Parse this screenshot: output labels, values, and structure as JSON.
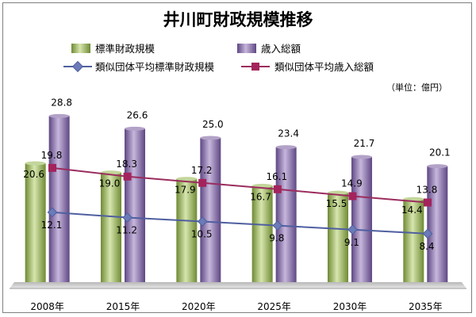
{
  "chart_data": {
    "type": "bar",
    "title": "井川町財政規模推移",
    "unit_label": "（単位：億円）",
    "categories": [
      "2008年",
      "2015年",
      "2020年",
      "2025年",
      "2030年",
      "2035年"
    ],
    "series": [
      {
        "name": "標準財政規模",
        "kind": "bar",
        "color": "#9bbb59",
        "values": [
          20.6,
          19.0,
          17.9,
          16.7,
          15.5,
          14.4
        ],
        "labels": [
          "20.6",
          "19.0",
          "17.9",
          "16.7",
          "15.5",
          "14.4"
        ]
      },
      {
        "name": "歳入総額",
        "kind": "bar",
        "color": "#8064a2",
        "values": [
          28.8,
          26.6,
          25.0,
          23.4,
          21.7,
          20.1
        ],
        "labels": [
          "28.8",
          "26.6",
          "25.0",
          "23.4",
          "21.7",
          "20.1"
        ]
      },
      {
        "name": "類似団体平均標準財政規模",
        "kind": "line",
        "marker": "diamond",
        "color": "#4f5fa0",
        "values": [
          12.1,
          11.2,
          10.5,
          9.8,
          9.1,
          8.4
        ],
        "labels": [
          "12.1",
          "11.2",
          "10.5",
          "9.8",
          "9.1",
          "8.4"
        ]
      },
      {
        "name": "類似団体平均歳入総額",
        "kind": "line",
        "marker": "square",
        "color": "#9b2d5e",
        "values": [
          19.8,
          18.3,
          17.2,
          16.1,
          14.9,
          13.8
        ],
        "labels": [
          "19.8",
          "18.3",
          "17.2",
          "16.1",
          "14.9",
          "13.8"
        ]
      }
    ],
    "ylim": [
      0,
      30
    ],
    "grid": false,
    "legend": "top-left"
  }
}
